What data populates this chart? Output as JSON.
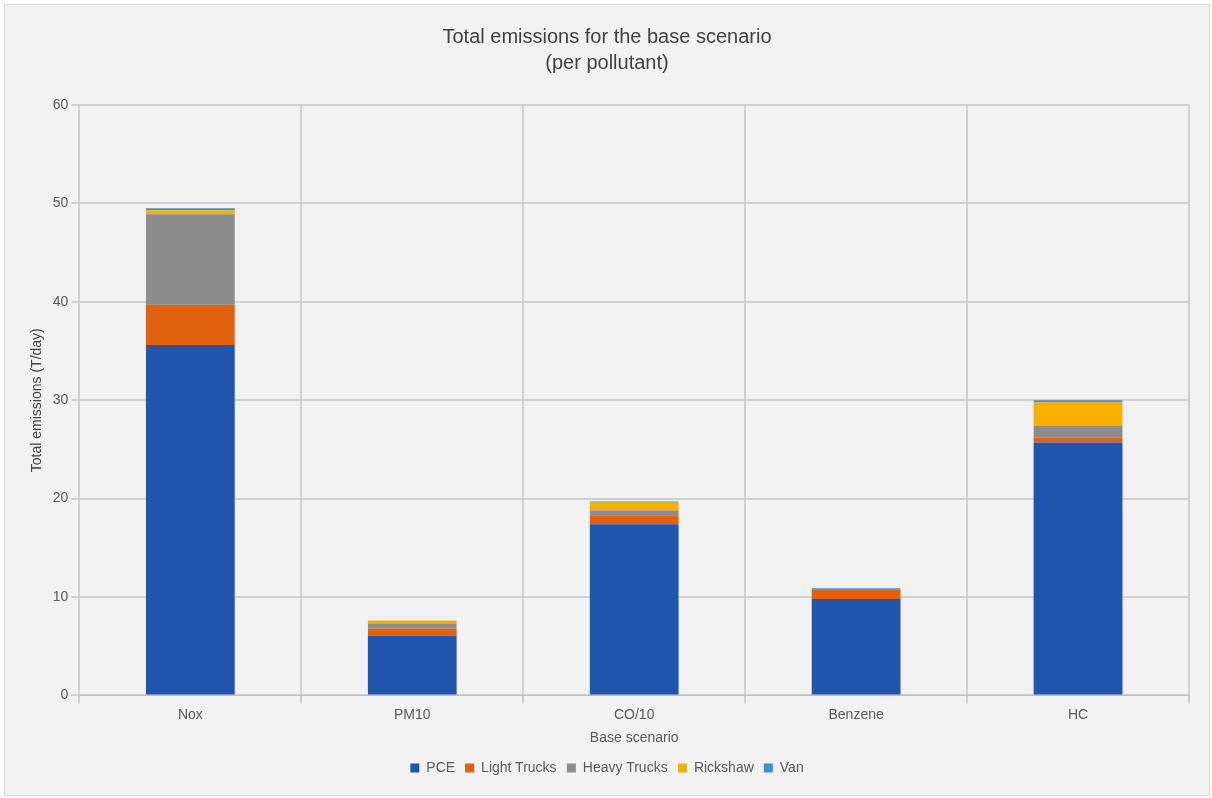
{
  "chart_data": {
    "type": "bar",
    "title": "Total emissions for the base scenario",
    "subtitle": "(per pollutant)",
    "xlabel": "Base scenario",
    "ylabel": "Total emissions (T/day)",
    "categories": [
      "Nox",
      "PM10",
      "CO/10",
      "Benzene",
      "HC"
    ],
    "stacked": true,
    "series": [
      {
        "name": "PCE",
        "color": "#2155ad",
        "values": [
          35.6,
          6.1,
          17.4,
          9.8,
          25.7
        ]
      },
      {
        "name": "Light Trucks",
        "color": "#e0610e",
        "values": [
          4.1,
          0.7,
          0.9,
          1.0,
          0.5
        ]
      },
      {
        "name": "Heavy Trucks",
        "color": "#8c8c8c",
        "values": [
          9.2,
          0.5,
          0.5,
          0,
          1.2
        ]
      },
      {
        "name": "Rickshaw",
        "color": "#f5b000",
        "values": [
          0.4,
          0.3,
          0.8,
          0,
          2.4
        ]
      },
      {
        "name": "Van",
        "color": "#3d8fd6",
        "values": [
          0.2,
          null,
          0.1,
          0.1,
          0.2
        ]
      }
    ],
    "ylim": [
      0,
      60
    ],
    "yticks": [
      0,
      10,
      20,
      30,
      40,
      50,
      60
    ],
    "grid": true,
    "legend": "bottom"
  }
}
